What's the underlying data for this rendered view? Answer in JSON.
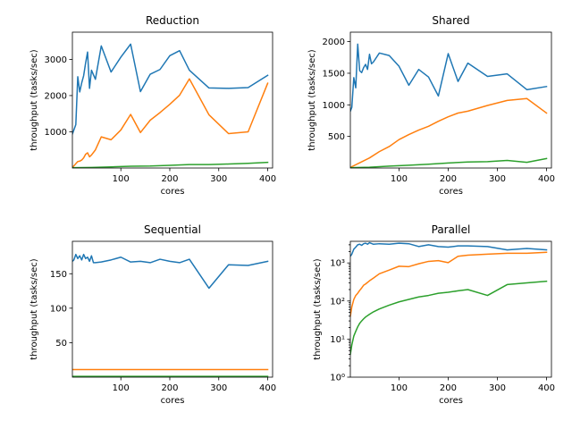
{
  "chart_data": [
    {
      "type": "line",
      "title": "Reduction",
      "xlabel": "cores",
      "ylabel": "throughput (tasks/sec)",
      "yscale": "linear",
      "xlim": [
        1,
        410
      ],
      "ylim": [
        0,
        3750
      ],
      "xticks": [
        100,
        200,
        300,
        400
      ],
      "yticks": [
        1000,
        2000,
        3000
      ],
      "series": [
        {
          "color": "#1f77b4",
          "x": [
            1,
            4,
            8,
            12,
            16,
            20,
            24,
            28,
            32,
            36,
            40,
            48,
            60,
            80,
            100,
            120,
            140,
            160,
            180,
            200,
            220,
            240,
            280,
            320,
            360,
            400
          ],
          "y": [
            940,
            1050,
            1200,
            2520,
            2100,
            2350,
            2550,
            2900,
            3200,
            2200,
            2700,
            2450,
            3370,
            2650,
            3060,
            3420,
            2110,
            2590,
            2720,
            3100,
            3240,
            2700,
            2210,
            2200,
            2220,
            2560
          ]
        },
        {
          "color": "#ff7f0e",
          "x": [
            1,
            4,
            8,
            12,
            16,
            20,
            24,
            28,
            32,
            36,
            40,
            48,
            60,
            80,
            100,
            120,
            140,
            160,
            180,
            200,
            220,
            240,
            280,
            320,
            360,
            400
          ],
          "y": [
            20,
            60,
            120,
            180,
            190,
            220,
            280,
            380,
            420,
            310,
            360,
            500,
            860,
            780,
            1050,
            1480,
            980,
            1320,
            1530,
            1760,
            2010,
            2460,
            1470,
            950,
            1000,
            2340
          ]
        },
        {
          "color": "#2ca02c",
          "x": [
            1,
            40,
            80,
            120,
            160,
            200,
            240,
            280,
            320,
            360,
            400
          ],
          "y": [
            8,
            15,
            30,
            50,
            55,
            75,
            95,
            95,
            110,
            130,
            155
          ]
        }
      ]
    },
    {
      "type": "line",
      "title": "Shared",
      "xlabel": "cores",
      "ylabel": "throughput (tasks/sec)",
      "yscale": "linear",
      "xlim": [
        1,
        410
      ],
      "ylim": [
        0,
        2150
      ],
      "xticks": [
        100,
        200,
        300,
        400
      ],
      "yticks": [
        500,
        1000,
        1500,
        2000
      ],
      "series": [
        {
          "color": "#1f77b4",
          "x": [
            1,
            4,
            8,
            12,
            16,
            20,
            24,
            28,
            32,
            36,
            40,
            44,
            48,
            60,
            80,
            100,
            120,
            140,
            160,
            180,
            200,
            220,
            240,
            280,
            320,
            360,
            400
          ],
          "y": [
            900,
            960,
            1430,
            1270,
            1960,
            1540,
            1510,
            1590,
            1640,
            1560,
            1800,
            1650,
            1680,
            1820,
            1780,
            1610,
            1310,
            1560,
            1440,
            1140,
            1810,
            1370,
            1660,
            1450,
            1490,
            1240,
            1290
          ]
        },
        {
          "color": "#ff7f0e",
          "x": [
            1,
            40,
            60,
            80,
            100,
            120,
            140,
            160,
            180,
            200,
            220,
            240,
            280,
            320,
            360,
            400
          ],
          "y": [
            10,
            160,
            260,
            340,
            450,
            530,
            600,
            660,
            740,
            810,
            870,
            900,
            990,
            1070,
            1100,
            870
          ]
        },
        {
          "color": "#2ca02c",
          "x": [
            1,
            40,
            80,
            120,
            160,
            200,
            240,
            280,
            320,
            360,
            400
          ],
          "y": [
            5,
            12,
            30,
            45,
            60,
            80,
            95,
            100,
            120,
            90,
            150
          ]
        }
      ]
    },
    {
      "type": "line",
      "title": "Sequential",
      "xlabel": "cores",
      "ylabel": "throughput (tasks/sec)",
      "yscale": "linear",
      "xlim": [
        1,
        410
      ],
      "ylim": [
        0,
        197
      ],
      "xticks": [
        100,
        200,
        300,
        400
      ],
      "yticks": [
        50,
        100,
        150
      ],
      "series": [
        {
          "color": "#1f77b4",
          "x": [
            1,
            4,
            8,
            12,
            16,
            20,
            24,
            28,
            32,
            36,
            40,
            44,
            48,
            60,
            80,
            100,
            120,
            140,
            160,
            180,
            200,
            220,
            240,
            280,
            320,
            360,
            400
          ],
          "y": [
            168,
            170,
            178,
            172,
            176,
            170,
            178,
            172,
            174,
            168,
            176,
            166,
            166,
            167,
            170,
            174,
            167,
            168,
            166,
            171,
            168,
            166,
            171,
            129,
            163,
            162,
            168
          ]
        },
        {
          "color": "#ff7f0e",
          "x": [
            1,
            400
          ],
          "y": [
            11,
            11
          ]
        },
        {
          "color": "#2ca02c",
          "x": [
            1,
            400
          ],
          "y": [
            1.2,
            1.2
          ]
        }
      ]
    },
    {
      "type": "line",
      "title": "Parallel",
      "xlabel": "cores",
      "ylabel": "throughput (tasks/sec)",
      "yscale": "log",
      "xlim": [
        1,
        410
      ],
      "ylim": [
        1,
        3700
      ],
      "xticks": [
        100,
        200,
        300,
        400
      ],
      "yticks": [
        1,
        10,
        100,
        1000
      ],
      "ytick_labels": [
        "10⁰",
        "10¹",
        "10²",
        "10³"
      ],
      "series": [
        {
          "color": "#1f77b4",
          "x": [
            1,
            4,
            8,
            12,
            16,
            20,
            24,
            28,
            32,
            36,
            40,
            48,
            60,
            80,
            100,
            120,
            140,
            160,
            180,
            200,
            220,
            240,
            280,
            320,
            360,
            400
          ],
          "y": [
            1500,
            1700,
            2300,
            2600,
            3000,
            3100,
            2900,
            3200,
            3300,
            3100,
            3400,
            3100,
            3200,
            3100,
            3300,
            3200,
            2700,
            3000,
            2700,
            2600,
            2800,
            2800,
            2700,
            2200,
            2400,
            2200
          ]
        },
        {
          "color": "#ff7f0e",
          "x": [
            1,
            4,
            8,
            12,
            16,
            20,
            24,
            28,
            32,
            40,
            48,
            60,
            80,
            100,
            120,
            140,
            160,
            180,
            200,
            220,
            240,
            280,
            320,
            360,
            400
          ],
          "y": [
            40,
            70,
            110,
            140,
            160,
            190,
            220,
            260,
            280,
            340,
            400,
            520,
            650,
            820,
            800,
            950,
            1100,
            1150,
            1020,
            1500,
            1600,
            1700,
            1800,
            1800,
            1900
          ]
        },
        {
          "color": "#2ca02c",
          "x": [
            1,
            4,
            8,
            12,
            16,
            20,
            24,
            28,
            32,
            40,
            48,
            60,
            80,
            100,
            120,
            140,
            160,
            180,
            200,
            220,
            240,
            280,
            320,
            360,
            400
          ],
          "y": [
            4,
            7,
            12,
            16,
            21,
            26,
            30,
            34,
            38,
            45,
            52,
            62,
            78,
            95,
            110,
            128,
            140,
            160,
            170,
            185,
            200,
            140,
            270,
            300,
            330
          ]
        }
      ]
    }
  ]
}
